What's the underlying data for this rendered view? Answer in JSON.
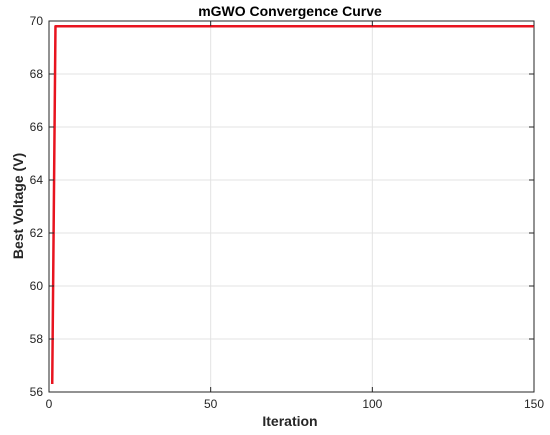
{
  "chart_data": {
    "type": "line",
    "title": "mGWO Convergence Curve",
    "xlabel": "Iteration",
    "ylabel": "Best Voltage (V)",
    "xlim": [
      0,
      150
    ],
    "ylim": [
      56,
      70
    ],
    "xticks": [
      0,
      50,
      100,
      150
    ],
    "yticks": [
      56,
      58,
      60,
      62,
      64,
      66,
      68,
      70
    ],
    "grid": true,
    "series": [
      {
        "color": "#e8141f",
        "x": [
          1,
          2,
          3,
          4,
          5,
          10,
          20,
          30,
          40,
          50,
          60,
          70,
          80,
          90,
          100,
          110,
          120,
          130,
          140,
          150
        ],
        "y": [
          56.3,
          69.8,
          69.8,
          69.8,
          69.8,
          69.8,
          69.8,
          69.8,
          69.8,
          69.8,
          69.8,
          69.8,
          69.8,
          69.8,
          69.8,
          69.8,
          69.8,
          69.8,
          69.8,
          69.8
        ]
      }
    ]
  }
}
